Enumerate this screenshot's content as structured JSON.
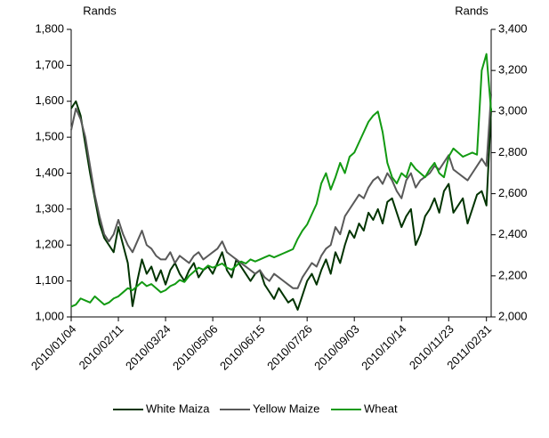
{
  "chart_data": {
    "type": "line",
    "y_label": "Rands",
    "y2_label": "Rands",
    "categories": [
      "2010/01/04",
      null,
      null,
      null,
      null,
      null,
      null,
      null,
      null,
      null,
      "2010/02/11",
      null,
      null,
      null,
      null,
      null,
      null,
      null,
      null,
      null,
      "2010/03/24",
      null,
      null,
      null,
      null,
      null,
      null,
      null,
      null,
      null,
      "2010/05/06",
      null,
      null,
      null,
      null,
      null,
      null,
      null,
      null,
      null,
      "2010/06/15",
      null,
      null,
      null,
      null,
      null,
      null,
      null,
      null,
      null,
      "2010/07/26",
      null,
      null,
      null,
      null,
      null,
      null,
      null,
      null,
      null,
      "2010/09/03",
      null,
      null,
      null,
      null,
      null,
      null,
      null,
      null,
      null,
      "2010/10/14",
      null,
      null,
      null,
      null,
      null,
      null,
      null,
      null,
      null,
      "2010/11/23",
      null,
      null,
      null,
      null,
      null,
      null,
      null,
      "2011/02/31",
      null
    ],
    "series": [
      {
        "name": "White Maiza",
        "color": "#003300",
        "axis": "y",
        "values": [
          1580,
          1600,
          1560,
          1480,
          1400,
          1330,
          1260,
          1220,
          1200,
          1180,
          1250,
          1200,
          1150,
          1030,
          1100,
          1160,
          1120,
          1140,
          1100,
          1130,
          1090,
          1130,
          1150,
          1120,
          1100,
          1130,
          1150,
          1110,
          1130,
          1140,
          1120,
          1150,
          1180,
          1130,
          1110,
          1160,
          1140,
          1120,
          1100,
          1120,
          1130,
          1090,
          1070,
          1050,
          1080,
          1060,
          1040,
          1050,
          1020,
          1060,
          1100,
          1120,
          1090,
          1130,
          1160,
          1120,
          1180,
          1150,
          1200,
          1240,
          1220,
          1260,
          1240,
          1290,
          1270,
          1300,
          1260,
          1320,
          1330,
          1290,
          1250,
          1280,
          1300,
          1200,
          1230,
          1280,
          1300,
          1330,
          1290,
          1350,
          1370,
          1290,
          1310,
          1330,
          1260,
          1300,
          1340,
          1350,
          1310,
          1580
        ]
      },
      {
        "name": "Yellow Maize",
        "color": "#595959",
        "axis": "y",
        "values": [
          1520,
          1580,
          1550,
          1500,
          1420,
          1340,
          1280,
          1230,
          1210,
          1230,
          1270,
          1230,
          1200,
          1180,
          1210,
          1240,
          1200,
          1190,
          1170,
          1160,
          1160,
          1180,
          1150,
          1170,
          1160,
          1150,
          1170,
          1180,
          1160,
          1170,
          1180,
          1190,
          1210,
          1180,
          1170,
          1160,
          1150,
          1140,
          1130,
          1120,
          1130,
          1110,
          1100,
          1120,
          1110,
          1100,
          1090,
          1080,
          1080,
          1110,
          1130,
          1150,
          1140,
          1170,
          1190,
          1200,
          1250,
          1230,
          1280,
          1300,
          1320,
          1340,
          1330,
          1360,
          1380,
          1390,
          1370,
          1400,
          1380,
          1350,
          1330,
          1380,
          1400,
          1360,
          1380,
          1390,
          1400,
          1420,
          1410,
          1430,
          1450,
          1410,
          1400,
          1390,
          1380,
          1400,
          1420,
          1440,
          1420,
          1620
        ]
      },
      {
        "name": "Wheat",
        "color": "#129a12",
        "axis": "y2",
        "values": [
          2050,
          2060,
          2090,
          2080,
          2070,
          2100,
          2080,
          2060,
          2070,
          2090,
          2100,
          2120,
          2140,
          2130,
          2150,
          2170,
          2150,
          2160,
          2140,
          2120,
          2130,
          2150,
          2160,
          2180,
          2170,
          2200,
          2220,
          2240,
          2230,
          2250,
          2240,
          2250,
          2260,
          2240,
          2230,
          2250,
          2270,
          2260,
          2280,
          2270,
          2280,
          2290,
          2300,
          2290,
          2300,
          2310,
          2320,
          2330,
          2380,
          2420,
          2450,
          2500,
          2550,
          2650,
          2700,
          2620,
          2680,
          2750,
          2700,
          2780,
          2800,
          2850,
          2900,
          2950,
          2980,
          3000,
          2900,
          2750,
          2680,
          2650,
          2700,
          2680,
          2750,
          2720,
          2700,
          2680,
          2720,
          2750,
          2700,
          2680,
          2780,
          2820,
          2800,
          2780,
          2790,
          2800,
          2790,
          3200,
          3280,
          3000
        ]
      }
    ],
    "ylim": [
      1000,
      1800
    ],
    "yticks": [
      {
        "value": 1000,
        "label": "1,000"
      },
      {
        "value": 1100,
        "label": "1,100"
      },
      {
        "value": 1200,
        "label": "1,200"
      },
      {
        "value": 1300,
        "label": "1,300"
      },
      {
        "value": 1400,
        "label": "1,400"
      },
      {
        "value": 1500,
        "label": "1,500"
      },
      {
        "value": 1600,
        "label": "1,600"
      },
      {
        "value": 1700,
        "label": "1,700"
      },
      {
        "value": 1800,
        "label": "1,800"
      }
    ],
    "y2lim": [
      2000,
      3400
    ],
    "y2ticks": [
      {
        "value": 2000,
        "label": "2,000"
      },
      {
        "value": 2200,
        "label": "2,200"
      },
      {
        "value": 2400,
        "label": "2,400"
      },
      {
        "value": 2600,
        "label": "2,600"
      },
      {
        "value": 2800,
        "label": "2,800"
      },
      {
        "value": 3000,
        "label": "3,000"
      },
      {
        "value": 3200,
        "label": "3,200"
      },
      {
        "value": 3400,
        "label": "3,400"
      }
    ],
    "legend": "bottom"
  }
}
